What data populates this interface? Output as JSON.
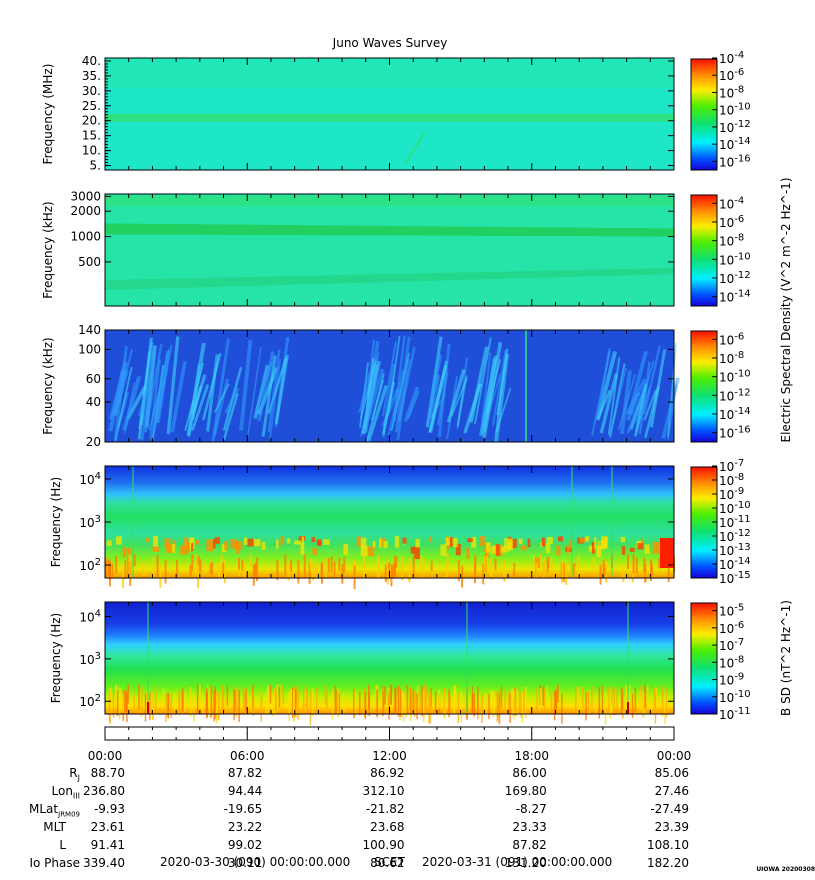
{
  "title": "Juno Waves Survey",
  "credit": "UIOWA 20200308",
  "chart_data": [
    {
      "type": "heatmap",
      "ylabel": "Frequency (MHz)",
      "yticks": [
        "40.",
        "35.",
        "30.",
        "25.",
        "20.",
        "15.",
        "10.",
        "5."
      ],
      "ytick_values": [
        40,
        35,
        30,
        25,
        20,
        15,
        10,
        5
      ],
      "ylim": [
        3.5,
        41
      ],
      "colorbar": {
        "labels": [
          "10^-4",
          "10^-6",
          "10^-8",
          "10^-10",
          "10^-12",
          "10^-14",
          "10^-16"
        ],
        "exponents": [
          "-4",
          "-6",
          "-8",
          "-10",
          "-12",
          "-14",
          "-16"
        ],
        "range": [
          -17,
          -4
        ]
      },
      "background_color": "#1ee6c8",
      "features": [
        {
          "kind": "band",
          "frequency": 21,
          "color": "#2de080"
        }
      ]
    },
    {
      "type": "heatmap",
      "ylabel": "Frequency (kHz)",
      "yticks": [
        "3000",
        "2000",
        "1000",
        "500"
      ],
      "ytick_values": [
        3000,
        2000,
        1000,
        500
      ],
      "yscale": "log",
      "ylim": [
        150,
        3200
      ],
      "colorbar": {
        "labels": [
          "10^-4",
          "10^-6",
          "10^-8",
          "10^-10",
          "10^-12",
          "10^-14"
        ],
        "exponents": [
          "-4",
          "-6",
          "-8",
          "-10",
          "-12",
          "-14"
        ],
        "range": [
          -15,
          -3
        ]
      },
      "background_color": "#26e3a8",
      "features": [
        {
          "kind": "band",
          "frequency": 1150,
          "color": "#22cc55"
        }
      ]
    },
    {
      "type": "heatmap",
      "ylabel": "Frequency (kHz)",
      "yticks": [
        "140",
        "100",
        "60",
        "40",
        "20"
      ],
      "ytick_values": [
        140,
        100,
        60,
        40,
        20
      ],
      "yscale": "log",
      "ylim": [
        20,
        140
      ],
      "colorbar": {
        "labels": [
          "10^-6",
          "10^-8",
          "10^-10",
          "10^-12",
          "10^-14",
          "10^-16"
        ],
        "exponents": [
          "-6",
          "-8",
          "-10",
          "-12",
          "-14",
          "-16"
        ],
        "range": [
          -17,
          -5
        ]
      },
      "shared_colorbar_title": "Electric Spectral Density (V^2 m^-2 Hz^-1)",
      "background_color": "#1f4fd8"
    },
    {
      "type": "heatmap",
      "ylabel": "Frequency (Hz)",
      "yticks": [
        "10^4",
        "10^3",
        "10^2"
      ],
      "ytick_exponents": [
        "4",
        "3",
        "2"
      ],
      "ytick_values": [
        10000,
        1000,
        100
      ],
      "yscale": "log",
      "ylim": [
        50,
        20000
      ],
      "colorbar": {
        "labels": [
          "10^-7",
          "10^-8",
          "10^-9",
          "10^-10",
          "10^-11",
          "10^-12",
          "10^-13",
          "10^-14",
          "10^-15"
        ],
        "exponents": [
          "-7",
          "-8",
          "-9",
          "-10",
          "-11",
          "-12",
          "-13",
          "-14",
          "-15"
        ],
        "range": [
          -15,
          -7
        ]
      }
    },
    {
      "type": "heatmap",
      "ylabel": "Frequency (Hz)",
      "yticks": [
        "10^4",
        "10^3",
        "10^2"
      ],
      "ytick_exponents": [
        "4",
        "3",
        "2"
      ],
      "ytick_values": [
        10000,
        1000,
        100
      ],
      "yscale": "log",
      "ylim": [
        50,
        22000
      ],
      "colorbar": {
        "labels": [
          "10^-5",
          "10^-6",
          "10^-7",
          "10^-8",
          "10^-9",
          "10^-10",
          "10^-11"
        ],
        "exponents": [
          "-5",
          "-6",
          "-7",
          "-8",
          "-9",
          "-10",
          "-11"
        ],
        "range": [
          -11,
          -4.5
        ],
        "title": "B SD (nT^2 Hz^-1)"
      }
    }
  ],
  "time_axis": {
    "ticks": [
      "00:00",
      "06:00",
      "12:00",
      "18:00",
      "00:00"
    ],
    "tick_hours": [
      0,
      6,
      12,
      18,
      24
    ],
    "range_hours": [
      0,
      24
    ]
  },
  "ephemeris": {
    "labels": [
      "RJ",
      "LonIII",
      "MLatJRM09",
      "MLT",
      "L",
      "Io Phase"
    ],
    "rows": [
      {
        "name": "R_J",
        "values": [
          "88.70",
          "87.82",
          "86.92",
          "86.00",
          "85.06"
        ]
      },
      {
        "name": "Lon_III",
        "values": [
          "236.80",
          "94.44",
          "312.10",
          "169.80",
          "27.46"
        ]
      },
      {
        "name": "MLat_JRM09",
        "values": [
          "-9.93",
          "-19.65",
          "-21.82",
          "-8.27",
          "-27.49"
        ]
      },
      {
        "name": "MLT",
        "values": [
          "23.61",
          "23.22",
          "23.68",
          "23.33",
          "23.39"
        ]
      },
      {
        "name": "L",
        "values": [
          "91.41",
          "99.02",
          "100.90",
          "87.82",
          "108.10"
        ]
      },
      {
        "name": "Io Phase",
        "values": [
          "339.40",
          "30.11",
          "80.62",
          "131.20",
          "182.20"
        ]
      }
    ]
  },
  "footer": {
    "start": "2020-03-30 (090) 00:00:00.000",
    "label": "SCET",
    "end": "2020-03-31 (091) 00:00:00.000"
  }
}
